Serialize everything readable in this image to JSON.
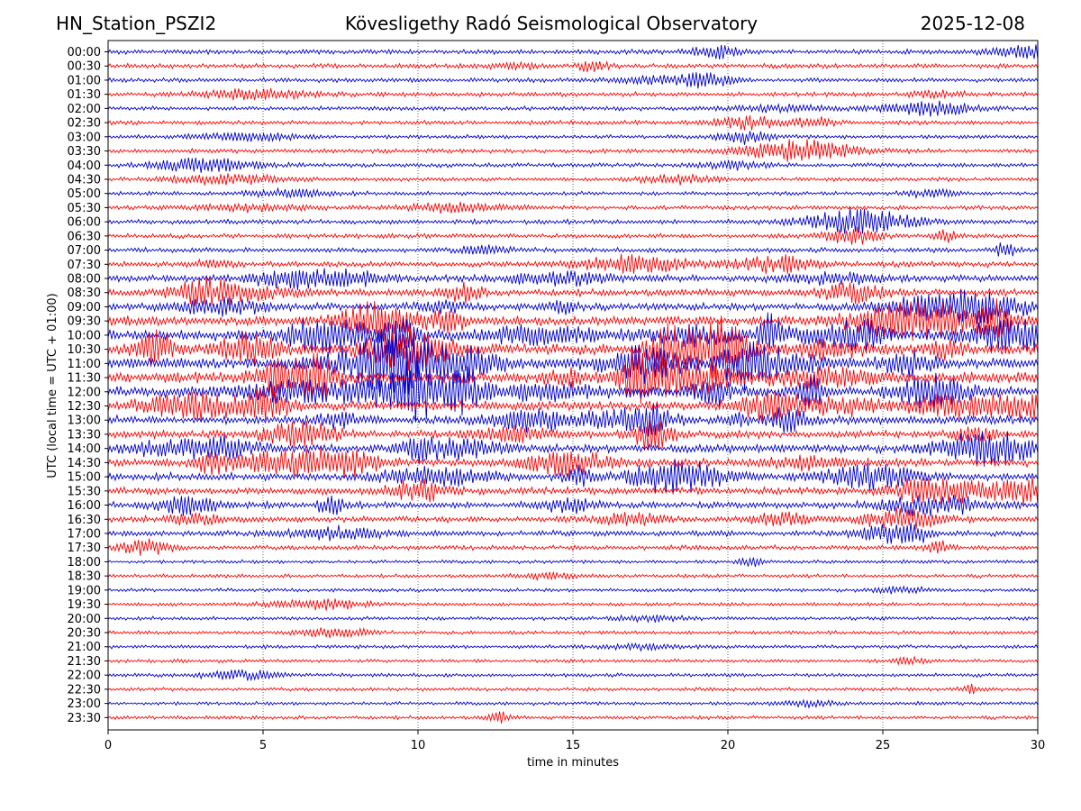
{
  "header": {
    "station": "HN_Station_PSZI2",
    "observatory": "Kövesligethy Radó Seismological Observatory",
    "date": "2025-12-08"
  },
  "chart_data": {
    "type": "line",
    "title": "Kövesligethy Radó Seismological Observatory",
    "xlabel": "time in minutes",
    "ylabel": "UTC (local time = UTC + 01:00)",
    "xlim": [
      0,
      30
    ],
    "x_ticks": [
      "0",
      "5",
      "10",
      "15",
      "20",
      "25",
      "30"
    ],
    "grid": "vertical dotted at every 5 minutes",
    "colors": {
      "even_hour_rows": "#0000cc",
      "half_hour_rows": "#ff0000",
      "grid": "#7f7fff"
    },
    "rows": [
      {
        "label": "00:00",
        "activity": 0.3
      },
      {
        "label": "00:30",
        "activity": 0.3
      },
      {
        "label": "01:00",
        "activity": 0.25
      },
      {
        "label": "01:30",
        "activity": 0.28
      },
      {
        "label": "02:00",
        "activity": 0.25
      },
      {
        "label": "02:30",
        "activity": 0.25
      },
      {
        "label": "03:00",
        "activity": 0.22
      },
      {
        "label": "03:30",
        "activity": 0.25
      },
      {
        "label": "04:00",
        "activity": 0.25
      },
      {
        "label": "04:30",
        "activity": 0.22
      },
      {
        "label": "05:00",
        "activity": 0.22
      },
      {
        "label": "05:30",
        "activity": 0.25
      },
      {
        "label": "06:00",
        "activity": 0.3
      },
      {
        "label": "06:30",
        "activity": 0.28
      },
      {
        "label": "07:00",
        "activity": 0.3
      },
      {
        "label": "07:30",
        "activity": 0.4
      },
      {
        "label": "08:00",
        "activity": 0.5
      },
      {
        "label": "08:30",
        "activity": 0.55
      },
      {
        "label": "09:00",
        "activity": 0.6
      },
      {
        "label": "09:30",
        "activity": 0.85
      },
      {
        "label": "10:00",
        "activity": 0.95
      },
      {
        "label": "10:30",
        "activity": 1.0
      },
      {
        "label": "11:00",
        "activity": 1.0
      },
      {
        "label": "11:30",
        "activity": 1.0
      },
      {
        "label": "12:00",
        "activity": 0.95
      },
      {
        "label": "12:30",
        "activity": 0.8
      },
      {
        "label": "13:00",
        "activity": 0.7
      },
      {
        "label": "13:30",
        "activity": 0.6
      },
      {
        "label": "14:00",
        "activity": 0.7
      },
      {
        "label": "14:30",
        "activity": 0.65
      },
      {
        "label": "15:00",
        "activity": 0.6
      },
      {
        "label": "15:30",
        "activity": 0.55
      },
      {
        "label": "16:00",
        "activity": 0.5
      },
      {
        "label": "16:30",
        "activity": 0.45
      },
      {
        "label": "17:00",
        "activity": 0.4
      },
      {
        "label": "17:30",
        "activity": 0.3
      },
      {
        "label": "18:00",
        "activity": 0.18
      },
      {
        "label": "18:30",
        "activity": 0.18
      },
      {
        "label": "19:00",
        "activity": 0.18
      },
      {
        "label": "19:30",
        "activity": 0.18
      },
      {
        "label": "20:00",
        "activity": 0.18
      },
      {
        "label": "20:30",
        "activity": 0.18
      },
      {
        "label": "21:00",
        "activity": 0.18
      },
      {
        "label": "21:30",
        "activity": 0.18
      },
      {
        "label": "22:00",
        "activity": 0.18
      },
      {
        "label": "22:30",
        "activity": 0.18
      },
      {
        "label": "23:00",
        "activity": 0.18
      },
      {
        "label": "23:30",
        "activity": 0.18
      }
    ]
  }
}
